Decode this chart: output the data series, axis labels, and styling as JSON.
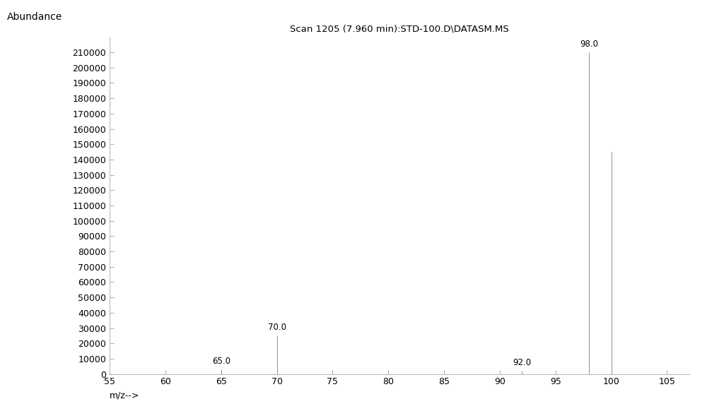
{
  "title": "Scan 1205 (7.960 min):STD-100.D\\DATASM.MS",
  "ylabel": "Abundance",
  "xlabel": "m/z-->",
  "xlim": [
    55,
    107
  ],
  "ylim": [
    0,
    220000
  ],
  "xticks": [
    55,
    60,
    65,
    70,
    75,
    80,
    85,
    90,
    95,
    100,
    105
  ],
  "yticks": [
    0,
    10000,
    20000,
    30000,
    40000,
    50000,
    60000,
    70000,
    80000,
    90000,
    100000,
    110000,
    120000,
    130000,
    140000,
    150000,
    160000,
    170000,
    180000,
    190000,
    200000,
    210000
  ],
  "peaks": [
    {
      "mz": 65.0,
      "intensity": 3000,
      "label": "65.0"
    },
    {
      "mz": 70.0,
      "intensity": 25000,
      "label": "70.0"
    },
    {
      "mz": 92.0,
      "intensity": 2000,
      "label": "92.0"
    },
    {
      "mz": 98.0,
      "intensity": 210000,
      "label": "98.0"
    },
    {
      "mz": 100.0,
      "intensity": 145000,
      "label": null
    }
  ],
  "line_color": "#909090",
  "background_color": "#ffffff",
  "title_fontsize": 9.5,
  "ylabel_fontsize": 10,
  "xlabel_fontsize": 9,
  "tick_fontsize": 9,
  "peak_label_fontsize": 8.5
}
